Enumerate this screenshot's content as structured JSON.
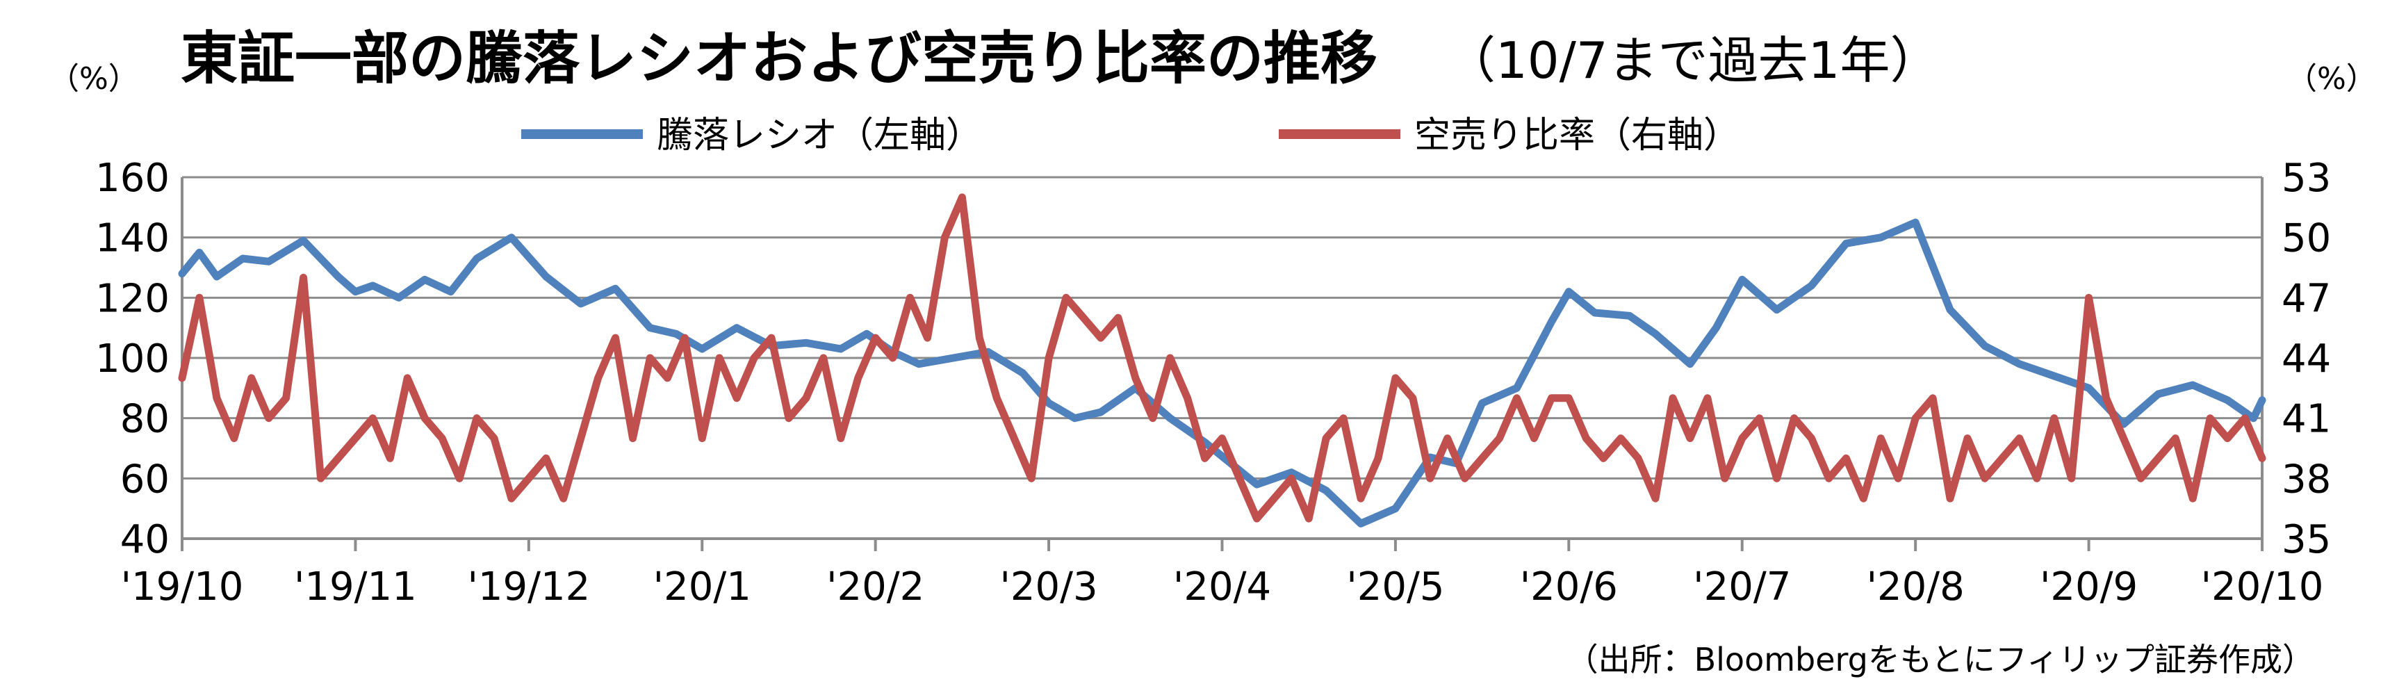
{
  "title_main": "東証一部の騰落レシオおよび空売り比率の推移",
  "title_sub": "（10/7まで過去1年）",
  "left_unit": "（%）",
  "right_unit": "（%）",
  "source": "（出所：Bloombergをもとにフィリップ証券作成）",
  "colors": {
    "series1": "#4F81BD",
    "series2": "#C0504D",
    "grid": "#8c8c8c",
    "axis": "#8c8c8c"
  },
  "chart_data": {
    "type": "line",
    "title": "東証一部の騰落レシオおよび空売り比率の推移（10/7まで過去1年）",
    "legend_position": "top",
    "grid": true,
    "x_ticks": [
      "'19/10",
      "'19/11",
      "'19/12",
      "'20/1",
      "'20/2",
      "'20/3",
      "'20/4",
      "'20/5",
      "'20/6",
      "'20/7",
      "'20/8",
      "'20/9",
      "'20/10"
    ],
    "y_left": {
      "label": "（%）",
      "range": [
        40,
        160
      ],
      "ticks": [
        40,
        60,
        80,
        100,
        120,
        140,
        160
      ]
    },
    "y_right": {
      "label": "（%）",
      "range": [
        35,
        53
      ],
      "ticks": [
        35,
        38,
        41,
        44,
        47,
        50,
        53
      ]
    },
    "series": [
      {
        "name": "騰落レシオ（左軸）",
        "axis": "left",
        "color": "#4F81BD",
        "x": [
          0,
          0.1,
          0.2,
          0.35,
          0.5,
          0.7,
          0.9,
          1.0,
          1.1,
          1.25,
          1.4,
          1.55,
          1.7,
          1.9,
          2.1,
          2.3,
          2.5,
          2.7,
          2.85,
          3.0,
          3.2,
          3.4,
          3.6,
          3.8,
          3.95,
          4.1,
          4.25,
          4.45,
          4.65,
          4.85,
          5.0,
          5.15,
          5.3,
          5.5,
          5.7,
          5.9,
          6.05,
          6.2,
          6.4,
          6.6,
          6.8,
          7.0,
          7.2,
          7.35,
          7.5,
          7.7,
          7.9,
          8.0,
          8.15,
          8.35,
          8.5,
          8.7,
          8.85,
          9.0,
          9.2,
          9.4,
          9.6,
          9.8,
          10.0,
          10.2,
          10.4,
          10.6,
          10.8,
          11.0,
          11.2,
          11.4,
          11.6,
          11.8,
          11.95,
          12.0
        ],
        "values": [
          128,
          135,
          127,
          133,
          132,
          139,
          127,
          122,
          124,
          120,
          126,
          122,
          133,
          140,
          127,
          118,
          123,
          110,
          108,
          103,
          110,
          104,
          105,
          103,
          108,
          102,
          98,
          100,
          102,
          95,
          85,
          80,
          82,
          90,
          80,
          72,
          65,
          58,
          62,
          56,
          45,
          50,
          67,
          65,
          85,
          90,
          112,
          122,
          115,
          114,
          108,
          98,
          110,
          126,
          116,
          124,
          138,
          140,
          145,
          116,
          104,
          98,
          94,
          90,
          78,
          88,
          91,
          86,
          80,
          86
        ]
      },
      {
        "name": "空売り比率（右軸）",
        "axis": "right",
        "color": "#C0504D",
        "x": [
          0,
          0.1,
          0.2,
          0.3,
          0.4,
          0.5,
          0.6,
          0.7,
          0.8,
          0.9,
          1.0,
          1.1,
          1.2,
          1.3,
          1.4,
          1.5,
          1.6,
          1.7,
          1.8,
          1.9,
          2.0,
          2.1,
          2.2,
          2.3,
          2.4,
          2.5,
          2.6,
          2.7,
          2.8,
          2.9,
          3.0,
          3.1,
          3.2,
          3.3,
          3.4,
          3.5,
          3.6,
          3.7,
          3.8,
          3.9,
          4.0,
          4.1,
          4.2,
          4.3,
          4.4,
          4.5,
          4.6,
          4.7,
          4.8,
          4.9,
          5.0,
          5.1,
          5.2,
          5.3,
          5.4,
          5.5,
          5.6,
          5.7,
          5.8,
          5.9,
          6.0,
          6.1,
          6.2,
          6.3,
          6.4,
          6.5,
          6.6,
          6.7,
          6.8,
          6.9,
          7.0,
          7.1,
          7.2,
          7.3,
          7.4,
          7.5,
          7.6,
          7.7,
          7.8,
          7.9,
          8.0,
          8.1,
          8.2,
          8.3,
          8.4,
          8.5,
          8.6,
          8.7,
          8.8,
          8.9,
          9.0,
          9.1,
          9.2,
          9.3,
          9.4,
          9.5,
          9.6,
          9.7,
          9.8,
          9.9,
          10.0,
          10.1,
          10.2,
          10.3,
          10.4,
          10.5,
          10.6,
          10.7,
          10.8,
          10.9,
          11.0,
          11.1,
          11.2,
          11.3,
          11.4,
          11.5,
          11.6,
          11.7,
          11.8,
          11.9,
          12.0
        ],
        "values": [
          43,
          47,
          42,
          40,
          43,
          41,
          42,
          48,
          38,
          39,
          40,
          41,
          39,
          43,
          41,
          40,
          38,
          41,
          40,
          37,
          38,
          39,
          37,
          40,
          43,
          45,
          40,
          44,
          43,
          45,
          40,
          44,
          42,
          44,
          45,
          41,
          42,
          44,
          40,
          43,
          45,
          44,
          47,
          45,
          50,
          52,
          45,
          42,
          40,
          38,
          44,
          47,
          46,
          45,
          46,
          43,
          41,
          44,
          42,
          39,
          40,
          38,
          36,
          37,
          38,
          36,
          40,
          41,
          37,
          39,
          43,
          42,
          38,
          40,
          38,
          39,
          40,
          42,
          40,
          42,
          42,
          40,
          39,
          40,
          39,
          37,
          42,
          40,
          42,
          38,
          40,
          41,
          38,
          41,
          40,
          38,
          39,
          37,
          40,
          38,
          41,
          42,
          37,
          40,
          38,
          39,
          40,
          38,
          41,
          38,
          47,
          42,
          40,
          38,
          39,
          40,
          37,
          41,
          40,
          41,
          39
        ]
      }
    ]
  }
}
